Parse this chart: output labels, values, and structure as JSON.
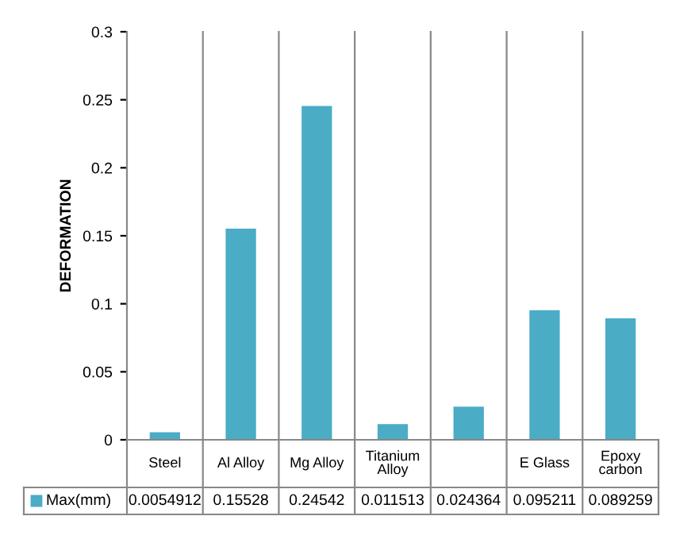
{
  "chart_data": {
    "type": "bar",
    "ylabel": "DEFORMATION",
    "categories": [
      "Steel",
      "Al Alloy",
      "Mg Alloy",
      "Titanium Alloy",
      null,
      "E Glass",
      "Epoxy carbon"
    ],
    "series": [
      {
        "name": "Max(mm)",
        "color": "#4bacc6",
        "values": [
          0.0054912,
          0.15528,
          0.24542,
          0.011513,
          0.024364,
          0.095211,
          0.089259
        ]
      }
    ],
    "ylim": [
      0,
      0.3
    ],
    "yticks": [
      0,
      0.05,
      0.1,
      0.15,
      0.2,
      0.25,
      0.3
    ],
    "data_labels": true,
    "grid": false
  }
}
